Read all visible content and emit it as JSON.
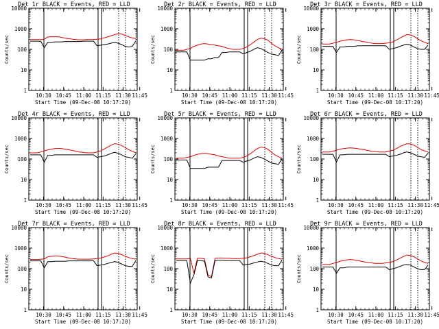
{
  "colors": {
    "events": "#000000",
    "lld": "#e00000",
    "frame": "#000000",
    "background": "#ffffff"
  },
  "xlabel": "Start Time (09-Dec-08 10:17:20)",
  "ylabel": "Counts/sec",
  "xticks": [
    "10:30",
    "10:45",
    "11:00",
    "11:15",
    "11:30",
    "11:45"
  ],
  "yticks": [
    "1",
    "10",
    "100",
    "1000",
    "10000"
  ],
  "chart_data": [
    {
      "type": "line",
      "title": "Det 1r BLACK = Events, RED = LLD",
      "ylim": [
        1,
        10000
      ],
      "series": [
        {
          "values": [
            300,
            300,
            300,
            300,
            310,
            400,
            410,
            410,
            410,
            380,
            350,
            330,
            310,
            300,
            290,
            290,
            300,
            300,
            300,
            310,
            320,
            360,
            400,
            460,
            520,
            580,
            560,
            480,
            400,
            360,
            330
          ]
        },
        {
          "values": [
            250,
            250,
            250,
            250,
            120,
            220,
            220,
            230,
            230,
            230,
            240,
            240,
            240,
            240,
            240,
            250,
            250,
            250,
            250,
            150,
            160,
            170,
            180,
            200,
            220,
            200,
            170,
            140,
            130,
            140,
            260
          ]
        }
      ]
    },
    {
      "type": "line",
      "title": "Det 2r BLACK = Events, RED = LLD",
      "ylim": [
        1,
        10000
      ],
      "series": [
        {
          "values": [
            90,
            90,
            90,
            100,
            110,
            140,
            160,
            180,
            190,
            180,
            170,
            160,
            150,
            140,
            120,
            110,
            100,
            100,
            100,
            110,
            130,
            170,
            220,
            300,
            350,
            330,
            280,
            200,
            150,
            120,
            100
          ]
        },
        {
          "values": [
            75,
            75,
            75,
            75,
            30,
            30,
            30,
            30,
            30,
            35,
            35,
            40,
            40,
            70,
            70,
            75,
            75,
            75,
            75,
            60,
            70,
            80,
            100,
            120,
            110,
            90,
            70,
            60,
            55,
            50,
            90
          ]
        }
      ]
    },
    {
      "type": "line",
      "title": "Det 3r BLACK = Events, RED = LLD",
      "ylim": [
        1,
        10000
      ],
      "series": [
        {
          "values": [
            180,
            180,
            180,
            200,
            220,
            250,
            270,
            290,
            300,
            290,
            270,
            250,
            230,
            220,
            200,
            190,
            190,
            190,
            200,
            210,
            230,
            280,
            350,
            430,
            520,
            500,
            430,
            330,
            260,
            220,
            190
          ]
        },
        {
          "values": [
            140,
            140,
            140,
            140,
            70,
            130,
            130,
            140,
            140,
            140,
            150,
            150,
            150,
            150,
            150,
            150,
            150,
            150,
            150,
            100,
            110,
            120,
            140,
            160,
            180,
            160,
            130,
            110,
            100,
            100,
            160
          ]
        }
      ]
    },
    {
      "type": "line",
      "title": "Det 4r BLACK = Events, RED = LLD",
      "ylim": [
        1,
        10000
      ],
      "series": [
        {
          "values": [
            200,
            200,
            200,
            220,
            250,
            280,
            300,
            320,
            330,
            320,
            300,
            280,
            260,
            240,
            220,
            210,
            200,
            200,
            200,
            220,
            250,
            300,
            380,
            470,
            560,
            530,
            450,
            360,
            280,
            240,
            200
          ]
        },
        {
          "values": [
            160,
            160,
            160,
            160,
            70,
            150,
            150,
            160,
            160,
            160,
            160,
            160,
            160,
            160,
            160,
            160,
            160,
            160,
            160,
            120,
            130,
            140,
            160,
            190,
            210,
            190,
            160,
            130,
            120,
            110,
            180
          ]
        }
      ]
    },
    {
      "type": "line",
      "title": "Det 5r BLACK = Events, RED = LLD",
      "ylim": [
        1,
        10000
      ],
      "series": [
        {
          "values": [
            110,
            110,
            110,
            120,
            130,
            150,
            170,
            180,
            190,
            180,
            170,
            160,
            140,
            130,
            120,
            110,
            110,
            110,
            110,
            120,
            140,
            180,
            240,
            320,
            380,
            360,
            300,
            220,
            160,
            130,
            110
          ]
        },
        {
          "values": [
            90,
            90,
            90,
            90,
            35,
            35,
            35,
            35,
            35,
            40,
            40,
            40,
            40,
            85,
            85,
            85,
            85,
            85,
            85,
            70,
            80,
            90,
            110,
            130,
            120,
            100,
            80,
            65,
            60,
            55,
            100
          ]
        }
      ]
    },
    {
      "type": "line",
      "title": "Det 6r BLACK = Events, RED = LLD",
      "ylim": [
        1,
        10000
      ],
      "series": [
        {
          "values": [
            220,
            220,
            220,
            240,
            270,
            300,
            320,
            340,
            350,
            340,
            320,
            300,
            280,
            260,
            240,
            230,
            220,
            220,
            220,
            240,
            270,
            320,
            400,
            480,
            560,
            540,
            470,
            370,
            290,
            250,
            220
          ]
        },
        {
          "values": [
            170,
            170,
            170,
            170,
            70,
            160,
            160,
            170,
            170,
            170,
            170,
            170,
            170,
            170,
            170,
            170,
            170,
            170,
            170,
            130,
            140,
            150,
            170,
            200,
            220,
            200,
            170,
            140,
            130,
            120,
            190
          ]
        }
      ]
    },
    {
      "type": "line",
      "title": "Det 7r BLACK = Events, RED = LLD",
      "ylim": [
        1,
        10000
      ],
      "series": [
        {
          "values": [
            280,
            280,
            280,
            290,
            300,
            380,
            400,
            410,
            410,
            390,
            360,
            330,
            310,
            300,
            290,
            290,
            290,
            290,
            300,
            310,
            330,
            370,
            420,
            500,
            580,
            560,
            480,
            400,
            350,
            310,
            290
          ]
        },
        {
          "values": [
            240,
            240,
            240,
            240,
            110,
            220,
            220,
            230,
            230,
            230,
            230,
            240,
            240,
            240,
            240,
            240,
            240,
            240,
            240,
            140,
            150,
            160,
            180,
            200,
            220,
            200,
            170,
            140,
            130,
            130,
            250
          ]
        }
      ]
    },
    {
      "type": "line",
      "title": "Det 8r BLACK = Events, RED = LLD",
      "ylim": [
        1,
        10000
      ],
      "series": [
        {
          "values": [
            300,
            300,
            300,
            300,
            320,
            60,
            320,
            320,
            300,
            50,
            40,
            320,
            330,
            330,
            320,
            320,
            310,
            310,
            310,
            320,
            340,
            380,
            430,
            500,
            580,
            560,
            480,
            400,
            350,
            310,
            290
          ]
        },
        {
          "values": [
            250,
            250,
            250,
            250,
            20,
            50,
            250,
            250,
            230,
            40,
            35,
            250,
            260,
            260,
            250,
            250,
            250,
            250,
            250,
            150,
            160,
            170,
            190,
            210,
            230,
            210,
            180,
            150,
            140,
            140,
            260
          ]
        }
      ]
    },
    {
      "type": "line",
      "title": "Det 9r BLACK = Events, RED = LLD",
      "ylim": [
        1,
        10000
      ],
      "series": [
        {
          "values": [
            160,
            160,
            160,
            180,
            200,
            230,
            250,
            270,
            280,
            270,
            250,
            230,
            210,
            200,
            190,
            180,
            180,
            180,
            190,
            200,
            220,
            260,
            320,
            390,
            460,
            440,
            380,
            300,
            240,
            200,
            180
          ]
        },
        {
          "values": [
            120,
            120,
            120,
            120,
            60,
            110,
            110,
            120,
            120,
            120,
            120,
            120,
            120,
            120,
            120,
            120,
            120,
            120,
            120,
            90,
            100,
            110,
            130,
            150,
            160,
            150,
            120,
            100,
            90,
            90,
            150
          ]
        }
      ]
    }
  ]
}
